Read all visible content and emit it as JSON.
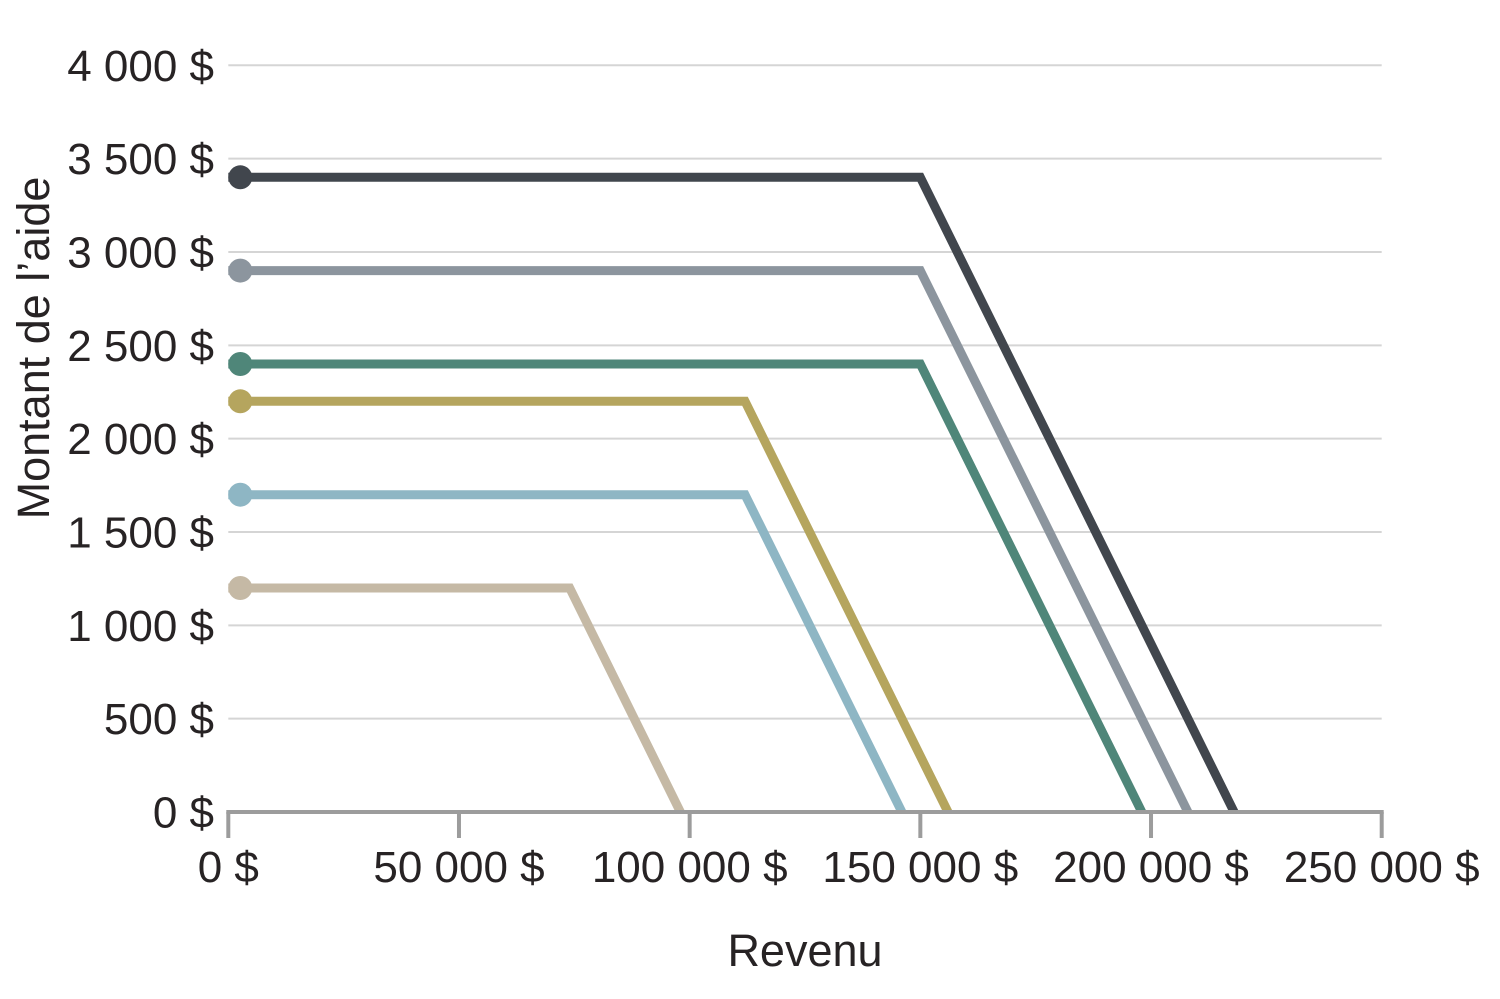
{
  "chart": {
    "background_color": "#ffffff",
    "grid_color": "#d5d5d5",
    "axis_color": "#9c9c9c",
    "text_color": "#272324"
  },
  "chart_data": {
    "type": "line",
    "title": "",
    "xlabel": "Revenu",
    "ylabel": "Montant de l’aide",
    "xlim": [
      0,
      250000
    ],
    "ylim": [
      0,
      4000
    ],
    "grid": "horizontal-only",
    "legend": "none",
    "marker": "dot-at-series-start",
    "x_ticks": [
      {
        "value": 0,
        "label": "0 $"
      },
      {
        "value": 50000,
        "label": "50 000 $"
      },
      {
        "value": 100000,
        "label": "100 000 $"
      },
      {
        "value": 150000,
        "label": "150 000 $"
      },
      {
        "value": 200000,
        "label": "200 000 $"
      },
      {
        "value": 250000,
        "label": "250 000 $"
      }
    ],
    "y_ticks": [
      {
        "value": 0,
        "label": "0 $"
      },
      {
        "value": 500,
        "label": "500 $"
      },
      {
        "value": 1000,
        "label": "1 000 $"
      },
      {
        "value": 1500,
        "label": "1 500 $"
      },
      {
        "value": 2000,
        "label": "2 000 $"
      },
      {
        "value": 2500,
        "label": "2 500 $"
      },
      {
        "value": 3000,
        "label": "3 000 $"
      },
      {
        "value": 3500,
        "label": "3 500 $"
      },
      {
        "value": 4000,
        "label": "4 000 $"
      }
    ],
    "series": [
      {
        "name": "charcoal-line",
        "color": "#41464d",
        "plateau_amount": 3400,
        "phaseout_start_income": 150000,
        "zero_income": 218000,
        "points": [
          [
            0,
            3400
          ],
          [
            150000,
            3400
          ],
          [
            218000,
            0
          ]
        ]
      },
      {
        "name": "slate-gray-line",
        "color": "#8c959e",
        "plateau_amount": 2900,
        "phaseout_start_income": 150000,
        "zero_income": 208000,
        "points": [
          [
            0,
            2900
          ],
          [
            150000,
            2900
          ],
          [
            208000,
            0
          ]
        ]
      },
      {
        "name": "teal-line",
        "color": "#4f8679",
        "plateau_amount": 2400,
        "phaseout_start_income": 150000,
        "zero_income": 198000,
        "points": [
          [
            0,
            2400
          ],
          [
            150000,
            2400
          ],
          [
            198000,
            0
          ]
        ]
      },
      {
        "name": "gold-line",
        "color": "#b5a55e",
        "plateau_amount": 2200,
        "phaseout_start_income": 112000,
        "zero_income": 156000,
        "points": [
          [
            0,
            2200
          ],
          [
            112000,
            2200
          ],
          [
            156000,
            0
          ]
        ]
      },
      {
        "name": "light-blue-line",
        "color": "#8eb6c4",
        "plateau_amount": 1700,
        "phaseout_start_income": 112000,
        "zero_income": 146000,
        "points": [
          [
            0,
            1700
          ],
          [
            112000,
            1700
          ],
          [
            146000,
            0
          ]
        ]
      },
      {
        "name": "beige-line",
        "color": "#c5b9a5",
        "plateau_amount": 1200,
        "phaseout_start_income": 74000,
        "zero_income": 98000,
        "points": [
          [
            0,
            1200
          ],
          [
            74000,
            1200
          ],
          [
            98000,
            0
          ]
        ]
      }
    ]
  }
}
